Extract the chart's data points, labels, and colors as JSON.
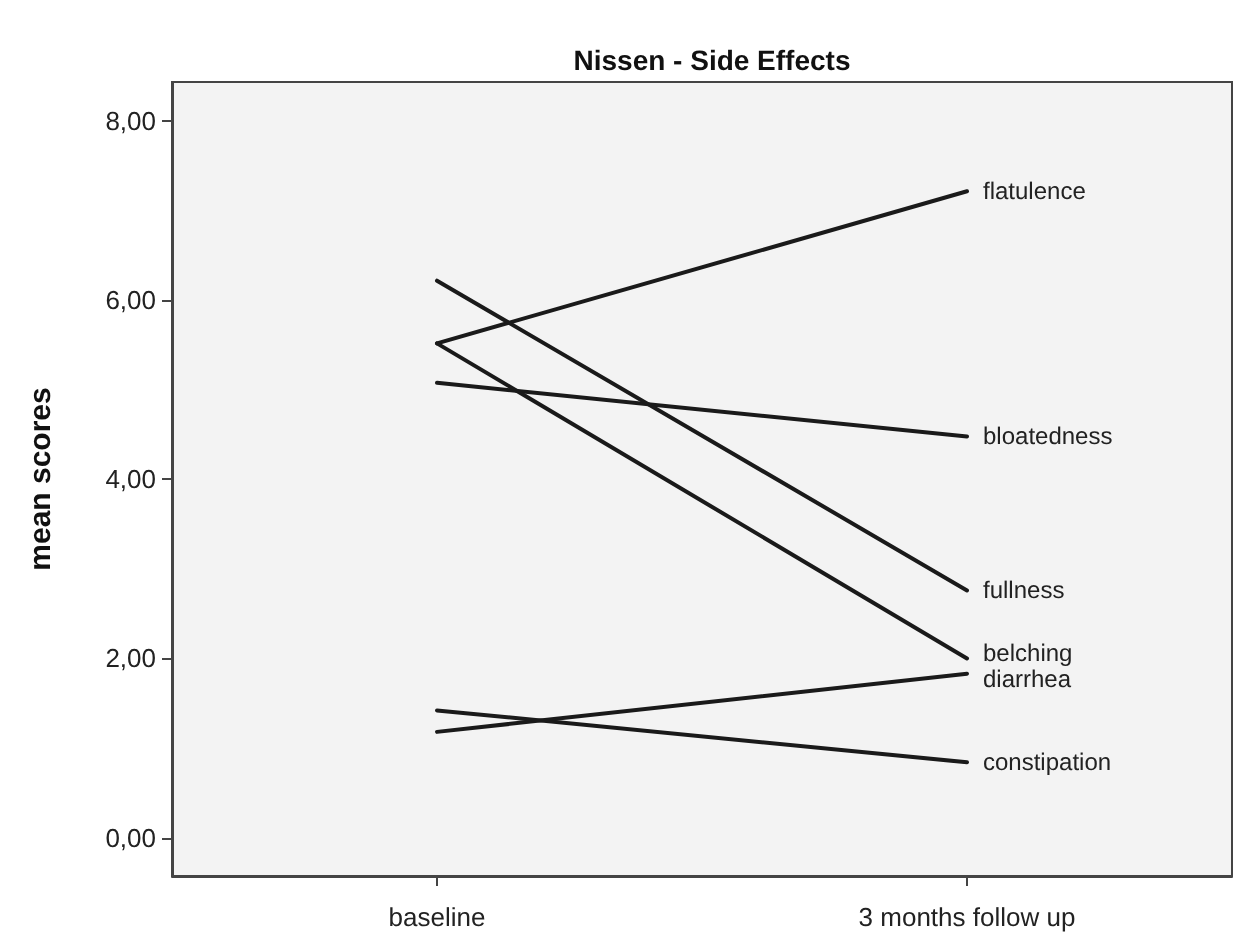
{
  "chart_data": {
    "type": "line",
    "title": "Nissen - Side Effects",
    "ylabel": "mean scores",
    "categories": [
      "baseline",
      "3 months follow up"
    ],
    "series": [
      {
        "name": "flatulence",
        "color": "#1a1a1a",
        "values": [
          5.52,
          7.22
        ]
      },
      {
        "name": "bloatedness",
        "color": "#1a1a1a",
        "values": [
          5.08,
          4.48
        ]
      },
      {
        "name": "fullness",
        "color": "#1a1a1a",
        "values": [
          6.22,
          2.76
        ]
      },
      {
        "name": "belching",
        "color": "#1a1a1a",
        "values": [
          5.52,
          2.0
        ]
      },
      {
        "name": "diarrhea",
        "color": "#1a1a1a",
        "values": [
          1.18,
          1.83
        ]
      },
      {
        "name": "constipation",
        "color": "#1a1a1a",
        "values": [
          1.42,
          0.84
        ]
      }
    ],
    "ylim": [
      -0.43,
      8.44
    ],
    "yticks": [
      {
        "value": 0,
        "label": "0,00"
      },
      {
        "value": 2,
        "label": "2,00"
      },
      {
        "value": 4,
        "label": "4,00"
      },
      {
        "value": 6,
        "label": "6,00"
      },
      {
        "value": 8,
        "label": "8,00"
      }
    ],
    "grid": false,
    "legend": false,
    "marker": "none",
    "line_style": "solid"
  }
}
